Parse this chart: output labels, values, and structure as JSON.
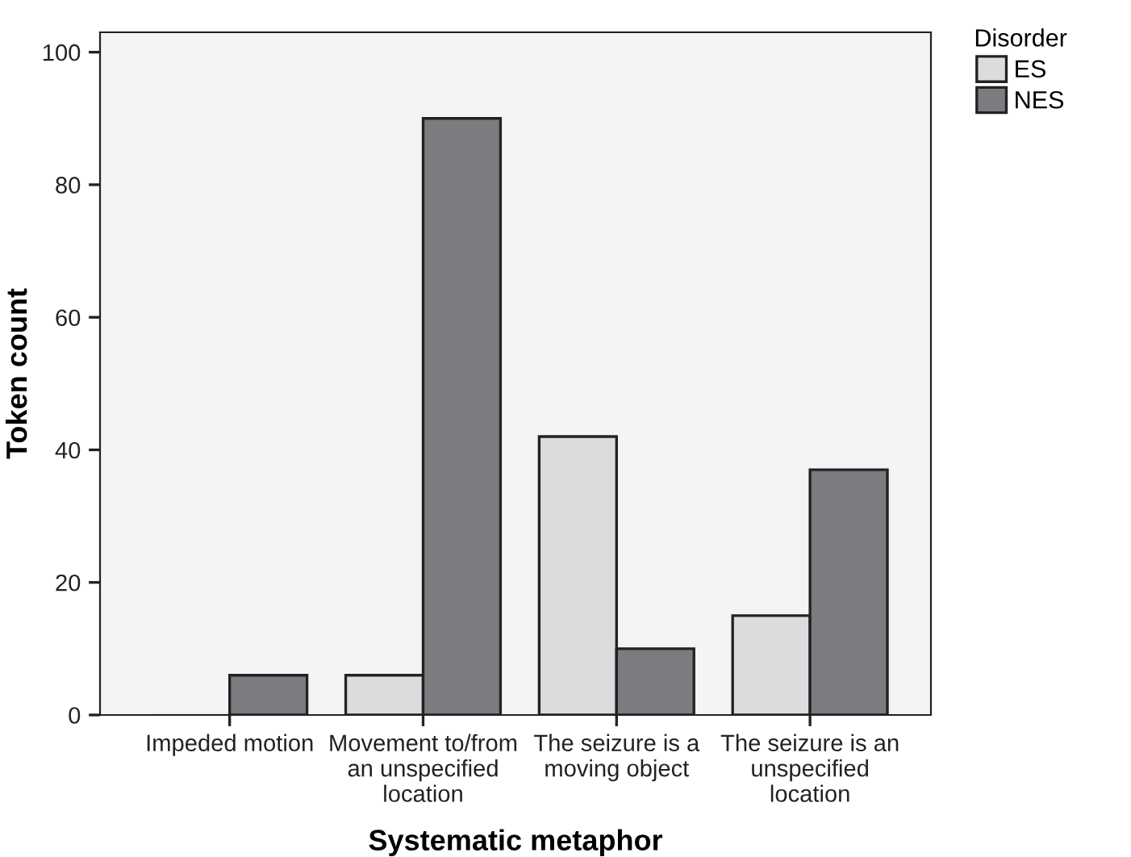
{
  "chart_data": {
    "type": "bar",
    "xlabel": "Systematic metaphor",
    "ylabel": "Token count",
    "legend_title": "Disorder",
    "categories": [
      "Impeded motion",
      "Movement to/from\nan unspecified\nlocation",
      "The seizure is a\nmoving object",
      "The seizure is an\nunspecified\nlocation"
    ],
    "series": [
      {
        "name": "ES",
        "color": "#dcdcde",
        "values": [
          0,
          6,
          42,
          15
        ]
      },
      {
        "name": "NES",
        "color": "#7b7c80",
        "values": [
          6,
          90,
          10,
          37
        ]
      }
    ],
    "ylim": [
      0,
      103
    ],
    "yticks": [
      0,
      20,
      40,
      60,
      80,
      100
    ],
    "grid": false,
    "legend": "top right"
  }
}
